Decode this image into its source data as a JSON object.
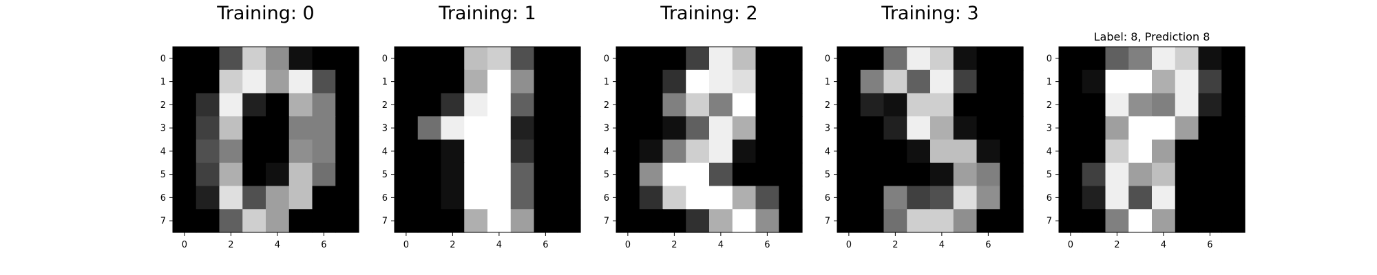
{
  "chart_data": [
    {
      "type": "heatmap",
      "title": "Training: 0",
      "xticks": [
        0,
        2,
        4,
        6
      ],
      "yticks": [
        0,
        1,
        2,
        3,
        4,
        5,
        6,
        7
      ],
      "colormap": "gray_r (0 = black, 16 = white)",
      "vmin": 0,
      "vmax": 16,
      "values": [
        [
          0,
          0,
          5,
          13,
          9,
          1,
          0,
          0
        ],
        [
          0,
          0,
          13,
          15,
          10,
          15,
          5,
          0
        ],
        [
          0,
          3,
          15,
          2,
          0,
          11,
          8,
          0
        ],
        [
          0,
          4,
          12,
          0,
          0,
          8,
          8,
          0
        ],
        [
          0,
          5,
          8,
          0,
          0,
          9,
          8,
          0
        ],
        [
          0,
          4,
          11,
          0,
          1,
          12,
          7,
          0
        ],
        [
          0,
          2,
          14,
          5,
          10,
          12,
          0,
          0
        ],
        [
          0,
          0,
          6,
          13,
          10,
          0,
          0,
          0
        ]
      ]
    },
    {
      "type": "heatmap",
      "title": "Training: 1",
      "xticks": [
        0,
        2,
        4,
        6
      ],
      "yticks": [
        0,
        1,
        2,
        3,
        4,
        5,
        6,
        7
      ],
      "colormap": "gray_r (0 = black, 16 = white)",
      "vmin": 0,
      "vmax": 16,
      "values": [
        [
          0,
          0,
          0,
          12,
          13,
          5,
          0,
          0
        ],
        [
          0,
          0,
          0,
          11,
          16,
          9,
          0,
          0
        ],
        [
          0,
          0,
          3,
          15,
          16,
          6,
          0,
          0
        ],
        [
          0,
          7,
          15,
          16,
          16,
          2,
          0,
          0
        ],
        [
          0,
          0,
          1,
          16,
          16,
          3,
          0,
          0
        ],
        [
          0,
          0,
          1,
          16,
          16,
          6,
          0,
          0
        ],
        [
          0,
          0,
          1,
          16,
          16,
          6,
          0,
          0
        ],
        [
          0,
          0,
          0,
          11,
          16,
          10,
          0,
          0
        ]
      ]
    },
    {
      "type": "heatmap",
      "title": "Training: 2",
      "xticks": [
        0,
        2,
        4,
        6
      ],
      "yticks": [
        0,
        1,
        2,
        3,
        4,
        5,
        6,
        7
      ],
      "colormap": "gray_r (0 = black, 16 = white)",
      "vmin": 0,
      "vmax": 16,
      "values": [
        [
          0,
          0,
          0,
          4,
          15,
          12,
          0,
          0
        ],
        [
          0,
          0,
          3,
          16,
          15,
          14,
          0,
          0
        ],
        [
          0,
          0,
          8,
          13,
          8,
          16,
          0,
          0
        ],
        [
          0,
          0,
          1,
          6,
          15,
          11,
          0,
          0
        ],
        [
          0,
          1,
          8,
          13,
          15,
          1,
          0,
          0
        ],
        [
          0,
          9,
          16,
          16,
          5,
          0,
          0,
          0
        ],
        [
          0,
          3,
          13,
          16,
          16,
          11,
          5,
          0
        ],
        [
          0,
          0,
          0,
          3,
          11,
          16,
          9,
          0
        ]
      ]
    },
    {
      "type": "heatmap",
      "title": "Training: 3",
      "xticks": [
        0,
        2,
        4,
        6
      ],
      "yticks": [
        0,
        1,
        2,
        3,
        4,
        5,
        6,
        7
      ],
      "colormap": "gray_r (0 = black, 16 = white)",
      "vmin": 0,
      "vmax": 16,
      "values": [
        [
          0,
          0,
          7,
          15,
          13,
          1,
          0,
          0
        ],
        [
          0,
          8,
          13,
          6,
          15,
          4,
          0,
          0
        ],
        [
          0,
          2,
          1,
          13,
          13,
          0,
          0,
          0
        ],
        [
          0,
          0,
          2,
          15,
          11,
          1,
          0,
          0
        ],
        [
          0,
          0,
          0,
          1,
          12,
          12,
          1,
          0
        ],
        [
          0,
          0,
          0,
          0,
          1,
          10,
          8,
          0
        ],
        [
          0,
          0,
          8,
          4,
          5,
          14,
          9,
          0
        ],
        [
          0,
          0,
          7,
          13,
          13,
          9,
          0,
          0
        ]
      ]
    },
    {
      "type": "heatmap",
      "title": "Label: 8, Prediction 8",
      "xticks": [
        0,
        2,
        4,
        6
      ],
      "yticks": [
        0,
        1,
        2,
        3,
        4,
        5,
        6,
        7
      ],
      "colormap": "gray_r (0 = black, 16 = white)",
      "vmin": 0,
      "vmax": 16,
      "values": [
        [
          0,
          0,
          6,
          8,
          15,
          13,
          1,
          0
        ],
        [
          0,
          1,
          16,
          16,
          11,
          15,
          4,
          0
        ],
        [
          0,
          0,
          15,
          9,
          8,
          15,
          2,
          0
        ],
        [
          0,
          0,
          10,
          16,
          16,
          10,
          0,
          0
        ],
        [
          0,
          0,
          13,
          16,
          10,
          0,
          0,
          0
        ],
        [
          0,
          4,
          15,
          10,
          12,
          0,
          0,
          0
        ],
        [
          0,
          2,
          15,
          5,
          15,
          0,
          0,
          0
        ],
        [
          0,
          0,
          8,
          16,
          10,
          0,
          0,
          0
        ]
      ]
    }
  ]
}
